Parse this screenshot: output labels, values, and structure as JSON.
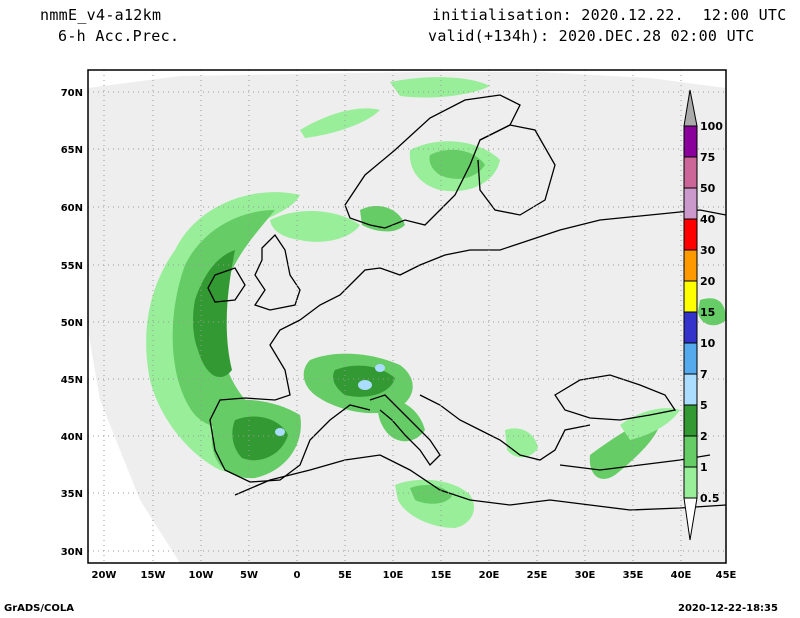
{
  "header": {
    "model": "nmmE_v4-a12km",
    "field": "6-h Acc.Prec.",
    "init": "initialisation: 2020.12.22.  12:00 UTC",
    "valid": "valid(+134h): 2020.DEC.28 02:00 UTC"
  },
  "footer": {
    "left": "GrADS/COLA",
    "right": "2020-12-22-18:35"
  },
  "axes": {
    "lat_labels": [
      "70N",
      "65N",
      "60N",
      "55N",
      "50N",
      "45N",
      "40N",
      "35N",
      "30N"
    ],
    "lon_labels": [
      "20W",
      "15W",
      "10W",
      "5W",
      "0",
      "5E",
      "10E",
      "15E",
      "20E",
      "25E",
      "30E",
      "35E",
      "40E",
      "45E"
    ]
  },
  "colorbar": {
    "levels": [
      "100",
      "75",
      "50",
      "40",
      "30",
      "20",
      "15",
      "10",
      "7",
      "5",
      "2",
      "1",
      "0.5"
    ],
    "colors": [
      "#aaaaaa",
      "#8a009a",
      "#cc6699",
      "#cc99cc",
      "#ff0000",
      "#ff9900",
      "#ffff00",
      "#3333cc",
      "#55aaee",
      "#aaddff",
      "#339933",
      "#66cc66",
      "#99ee99"
    ]
  },
  "map_colors": {
    "domain": "#eeeeee",
    "light_green": "#99ee99",
    "mid_green": "#66cc66",
    "dark_green": "#339933",
    "light_blue": "#aaddff"
  }
}
